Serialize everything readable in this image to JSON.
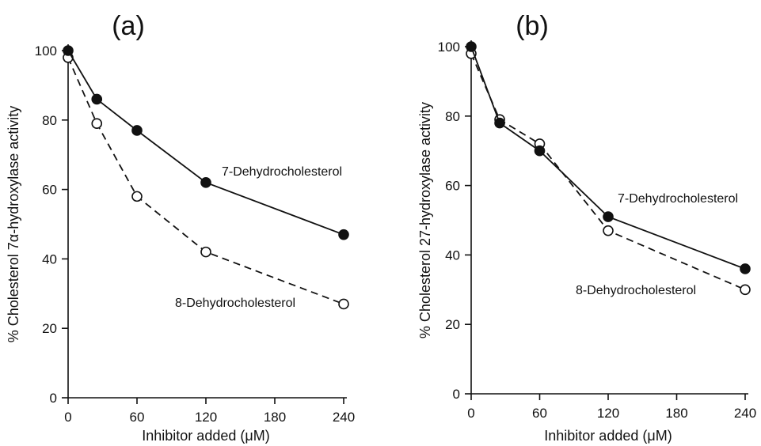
{
  "chart_data": [
    {
      "panel": "(a)",
      "type": "line",
      "xlabel": "Inhibitor added (μM)",
      "ylabel": "% Cholesterol 7α-hydroxylase activity",
      "xlim": [
        0,
        240
      ],
      "ylim": [
        0,
        100
      ],
      "xticks": [
        0,
        60,
        120,
        180,
        240
      ],
      "yticks": [
        0,
        20,
        40,
        60,
        80,
        100
      ],
      "grid": false,
      "legend": "none (series labeled inline)",
      "series": [
        {
          "name": "7-Dehydrocholesterol",
          "marker": "filled-circle",
          "line": "solid",
          "x": [
            0,
            25,
            60,
            120,
            240
          ],
          "y": [
            100,
            86,
            77,
            62,
            47
          ]
        },
        {
          "name": "8-Dehydrocholesterol",
          "marker": "open-circle",
          "line": "dashed",
          "x": [
            0,
            25,
            60,
            120,
            240
          ],
          "y": [
            98,
            79,
            58,
            42,
            27
          ]
        }
      ]
    },
    {
      "panel": "(b)",
      "type": "line",
      "xlabel": "Inhibitor added (μM)",
      "ylabel": "% Cholesterol 27-hydroxylase activity",
      "xlim": [
        0,
        240
      ],
      "ylim": [
        0,
        100
      ],
      "xticks": [
        0,
        60,
        120,
        180,
        240
      ],
      "yticks": [
        0,
        20,
        40,
        60,
        80,
        100
      ],
      "grid": false,
      "legend": "none (series labeled inline)",
      "series": [
        {
          "name": "7-Dehydrocholesterol",
          "marker": "filled-circle",
          "line": "solid",
          "x": [
            0,
            25,
            60,
            120,
            240
          ],
          "y": [
            100,
            78,
            70,
            51,
            36
          ]
        },
        {
          "name": "8-Dehydrocholesterol",
          "marker": "open-circle",
          "line": "dashed",
          "x": [
            0,
            25,
            60,
            120,
            240
          ],
          "y": [
            98,
            79,
            72,
            47,
            30
          ]
        }
      ]
    }
  ]
}
